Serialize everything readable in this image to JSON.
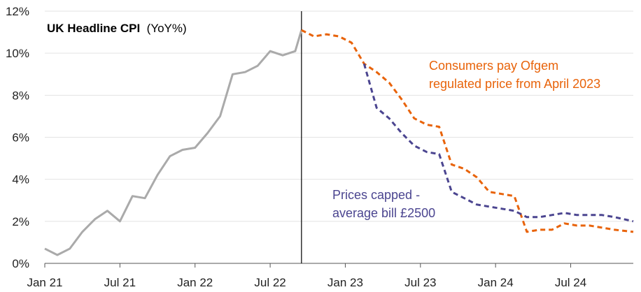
{
  "chart_data": {
    "type": "line",
    "title": "UK Headline CPI",
    "title_unit": "(YoY%)",
    "y_ticks": [
      "0%",
      "2%",
      "4%",
      "6%",
      "8%",
      "10%",
      "12%"
    ],
    "ylim": [
      0,
      12
    ],
    "x_ticks": [
      "Jan 21",
      "Jul 21",
      "Jan 22",
      "Jul 22",
      "Jan 23",
      "Jul 23",
      "Jan 24",
      "Jul 24"
    ],
    "x_tick_months": [
      0,
      6,
      12,
      18,
      24,
      30,
      36,
      42
    ],
    "x_range_months": [
      0,
      47
    ],
    "grid": "horizontal",
    "divider_month": 20.5,
    "series": [
      {
        "name": "UK Headline CPI (actual)",
        "color": "#aaaaaa",
        "dash": "solid",
        "points": [
          [
            0,
            0.7
          ],
          [
            1,
            0.4
          ],
          [
            2,
            0.7
          ],
          [
            3,
            1.5
          ],
          [
            4,
            2.1
          ],
          [
            5,
            2.5
          ],
          [
            6,
            2.0
          ],
          [
            7,
            3.2
          ],
          [
            8,
            3.1
          ],
          [
            9,
            4.2
          ],
          [
            10,
            5.1
          ],
          [
            11,
            5.4
          ],
          [
            12,
            5.5
          ],
          [
            13,
            6.2
          ],
          [
            14,
            7.0
          ],
          [
            15,
            9.0
          ],
          [
            16,
            9.1
          ],
          [
            17,
            9.4
          ],
          [
            18,
            10.1
          ],
          [
            19,
            9.9
          ],
          [
            20,
            10.1
          ],
          [
            20.5,
            11.1
          ]
        ]
      },
      {
        "name": "Consumers pay Ofgem regulated price from April 2023",
        "color": "#e8630a",
        "dash": "dashed",
        "points": [
          [
            20.5,
            11.1
          ],
          [
            21.5,
            10.8
          ],
          [
            22.5,
            10.9
          ],
          [
            23.5,
            10.8
          ],
          [
            24.5,
            10.5
          ],
          [
            25.5,
            9.5
          ],
          [
            26.5,
            9.1
          ],
          [
            27.5,
            8.6
          ],
          [
            28.5,
            7.8
          ],
          [
            29.5,
            6.9
          ],
          [
            30.5,
            6.6
          ],
          [
            31.5,
            6.5
          ],
          [
            32.5,
            4.7
          ],
          [
            33.5,
            4.5
          ],
          [
            34.5,
            4.1
          ],
          [
            35.5,
            3.4
          ],
          [
            36.5,
            3.3
          ],
          [
            37.5,
            3.2
          ],
          [
            38.5,
            1.5
          ],
          [
            39.5,
            1.6
          ],
          [
            40.5,
            1.6
          ],
          [
            41.5,
            1.9
          ],
          [
            42.5,
            1.8
          ],
          [
            43.5,
            1.8
          ],
          [
            44.5,
            1.7
          ],
          [
            45.5,
            1.6
          ],
          [
            47,
            1.5
          ]
        ]
      },
      {
        "name": "Prices capped - average bill £2500",
        "color": "#4b4590",
        "dash": "dashed",
        "points": [
          [
            25.5,
            9.5
          ],
          [
            26.5,
            7.4
          ],
          [
            27.5,
            6.9
          ],
          [
            28.5,
            6.2
          ],
          [
            29.5,
            5.6
          ],
          [
            30.5,
            5.3
          ],
          [
            31.5,
            5.2
          ],
          [
            32.5,
            3.4
          ],
          [
            33.5,
            3.1
          ],
          [
            34.5,
            2.8
          ],
          [
            35.5,
            2.7
          ],
          [
            36.5,
            2.6
          ],
          [
            37.5,
            2.5
          ],
          [
            38.5,
            2.2
          ],
          [
            39.5,
            2.2
          ],
          [
            40.5,
            2.3
          ],
          [
            41.5,
            2.4
          ],
          [
            42.5,
            2.3
          ],
          [
            43.5,
            2.3
          ],
          [
            44.5,
            2.3
          ],
          [
            45.5,
            2.2
          ],
          [
            47,
            2.0
          ]
        ]
      }
    ],
    "annotations": {
      "orange_line1": "Consumers pay Ofgem",
      "orange_line2": "regulated price from April 2023",
      "purple_line1": "Prices capped -",
      "purple_line2": "average bill £2500"
    }
  }
}
